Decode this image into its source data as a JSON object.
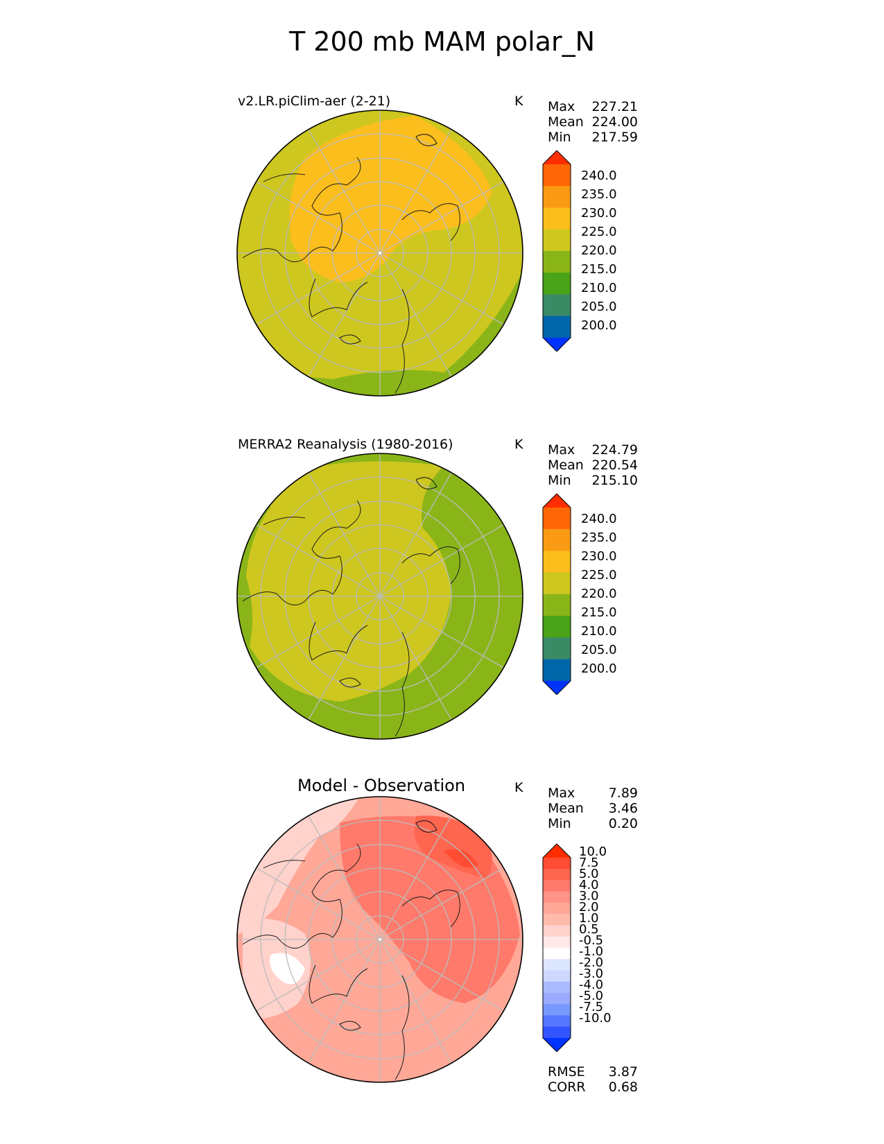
{
  "title": "T 200 mb MAM polar_N",
  "colormaps": {
    "temperature": [
      "#0033ff",
      "#0066aa",
      "#3a8a66",
      "#4aa318",
      "#8ab519",
      "#cec71f",
      "#fbbe1d",
      "#fb9b14",
      "#fe6705",
      "#ff2d00"
    ],
    "difference": [
      "#0033ff",
      "#3355ff",
      "#5577ff",
      "#7799ff",
      "#99aaff",
      "#aabbff",
      "#ccd8ff",
      "#dde6ff",
      "#ffffff",
      "#ffe8e8",
      "#ffd2cc",
      "#ffbbaa",
      "#ffa898",
      "#ff9388",
      "#ff7a6a",
      "#ff6650",
      "#ff4d33",
      "#ff2d00"
    ]
  },
  "panels": [
    {
      "id": "model",
      "title": "v2.LR.piClim-aer (2-21)",
      "unit": "K",
      "stats": [
        {
          "label": "Max",
          "value": "227.21"
        },
        {
          "label": "Mean",
          "value": "224.00"
        },
        {
          "label": "Min",
          "value": "217.59"
        }
      ],
      "colorbar_ticks": [
        "240.0",
        "235.0",
        "230.0",
        "225.0",
        "220.0",
        "215.0",
        "210.0",
        "205.0",
        "200.0"
      ]
    },
    {
      "id": "obs",
      "title": "MERRA2 Reanalysis (1980-2016)",
      "unit": "K",
      "stats": [
        {
          "label": "Max",
          "value": "224.79"
        },
        {
          "label": "Mean",
          "value": "220.54"
        },
        {
          "label": "Min",
          "value": "215.10"
        }
      ],
      "colorbar_ticks": [
        "240.0",
        "235.0",
        "230.0",
        "225.0",
        "220.0",
        "215.0",
        "210.0",
        "205.0",
        "200.0"
      ]
    },
    {
      "id": "diff",
      "title": "Model - Observation",
      "unit": "K",
      "stats": [
        {
          "label": "Max",
          "value": "7.89"
        },
        {
          "label": "Mean",
          "value": "3.46"
        },
        {
          "label": "Min",
          "value": "0.20"
        }
      ],
      "colorbar_ticks": [
        "10.0",
        "7.5",
        "5.0",
        "4.0",
        "3.0",
        "2.0",
        "1.0",
        "0.5",
        "-0.5",
        "-1.0",
        "-2.0",
        "-3.0",
        "-4.0",
        "-5.0",
        "-7.5",
        "-10.0"
      ],
      "extra_stats": [
        {
          "label": "RMSE",
          "value": "3.87"
        },
        {
          "label": "CORR",
          "value": "0.68"
        }
      ]
    }
  ]
}
